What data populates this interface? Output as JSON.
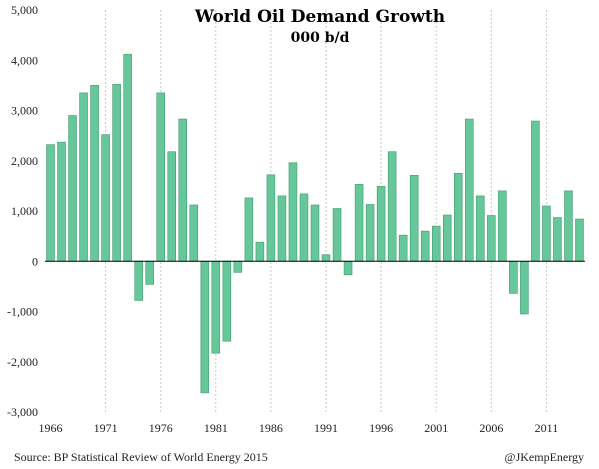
{
  "chart_data": {
    "type": "bar",
    "title": "World Oil Demand Growth",
    "subtitle": "000 b/d",
    "source": "Source: BP Statistical Review of World Energy 2015",
    "credit": "@JKempEnergy",
    "xlabel": "",
    "ylabel": "",
    "ylim": [
      -3000,
      5000
    ],
    "y_ticks": [
      -3000,
      -2000,
      -1000,
      0,
      1000,
      2000,
      3000,
      4000,
      5000
    ],
    "y_tick_labels": [
      "-3,000",
      "-2,000",
      "-1,000",
      "0",
      "1,000",
      "2,000",
      "3,000",
      "4,000",
      "5,000"
    ],
    "x_tick_labels": [
      "1966",
      "1971",
      "1976",
      "1981",
      "1986",
      "1991",
      "1996",
      "2001",
      "2006",
      "2011"
    ],
    "grid": "vertical dashed at every 5 years",
    "bar_color": "#66c89a",
    "bar_edge_color": "#3f9a6c",
    "categories": [
      1966,
      1967,
      1968,
      1969,
      1970,
      1971,
      1972,
      1973,
      1974,
      1975,
      1976,
      1977,
      1978,
      1979,
      1980,
      1981,
      1982,
      1983,
      1984,
      1985,
      1986,
      1987,
      1988,
      1989,
      1990,
      1991,
      1992,
      1993,
      1994,
      1995,
      1996,
      1997,
      1998,
      1999,
      2000,
      2001,
      2002,
      2003,
      2004,
      2005,
      2006,
      2007,
      2008,
      2009,
      2010,
      2011,
      2012,
      2013,
      2014
    ],
    "values": [
      2320,
      2370,
      2900,
      3350,
      3500,
      2520,
      3520,
      4120,
      -780,
      -460,
      3350,
      2180,
      2830,
      1120,
      -2620,
      -1830,
      -1590,
      -220,
      1260,
      380,
      1720,
      1300,
      1960,
      1340,
      1120,
      130,
      1050,
      -270,
      1530,
      1130,
      1490,
      2180,
      520,
      1710,
      600,
      700,
      920,
      1750,
      2830,
      1300,
      910,
      1400,
      -640,
      -1050,
      2790,
      1100,
      870,
      1400,
      840
    ]
  }
}
